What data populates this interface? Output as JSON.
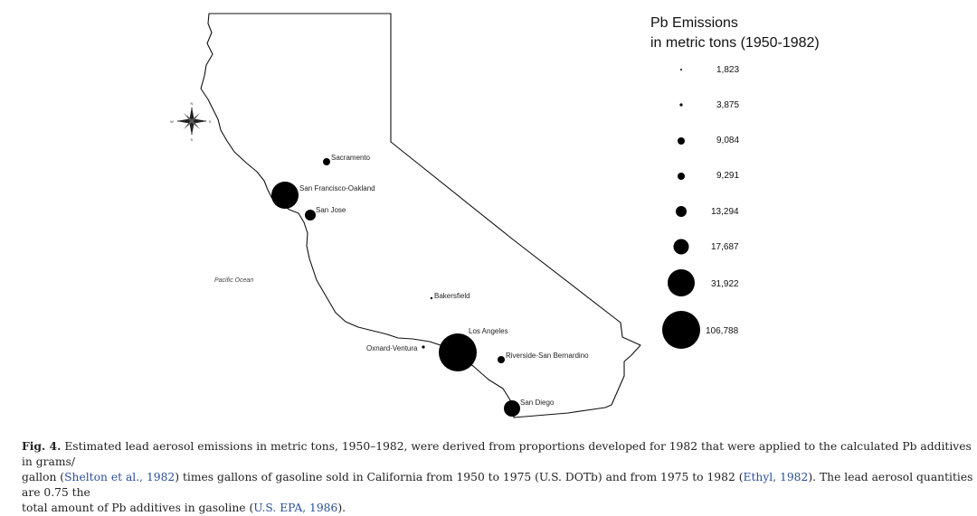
{
  "map": {
    "ocean_label": "Pacific Ocean",
    "compass": {
      "north": "N",
      "south": "S",
      "east": "E",
      "west": "W"
    },
    "cities": [
      {
        "name": "Sacramento",
        "emission_rank": 3
      },
      {
        "name": "San Francisco-Oakland",
        "emission_rank": 7
      },
      {
        "name": "San Jose",
        "emission_rank": 4
      },
      {
        "name": "Bakersfield",
        "emission_rank": 1
      },
      {
        "name": "Los Angeles",
        "emission_rank": 8
      },
      {
        "name": "Oxnard-Ventura",
        "emission_rank": 2
      },
      {
        "name": "Riverside-San Bernardino",
        "emission_rank": 3
      },
      {
        "name": "San Diego",
        "emission_rank": 5
      }
    ],
    "marker_color": "#000000",
    "outline_color": "#111111"
  },
  "legend": {
    "title_line1": "Pb Emissions",
    "title_line2": "in metric tons (1950-1982)",
    "values": [
      "1,823",
      "3,875",
      "9,084",
      "9,291",
      "13,294",
      "17,687",
      "31,922",
      "106,788"
    ]
  },
  "caption": {
    "label": "Fig. 4.",
    "t1": " Estimated lead aerosol emissions in metric tons, 1950–1982, were derived from proportions developed for 1982 that were applied to the calculated Pb additives in grams/",
    "t2": "gallon (",
    "ref1": "Shelton et al., 1982",
    "t3": ") times gallons of gasoline sold in California from 1950 to 1975 (U.S. DOTb) and from 1975 to 1982 (",
    "ref2": "Ethyl, 1982",
    "t4": "). The lead aerosol quantities are 0.75 the",
    "t5": "total amount of Pb additives in gasoline (",
    "ref3": "U.S. EPA, 1986",
    "t6": ")."
  }
}
